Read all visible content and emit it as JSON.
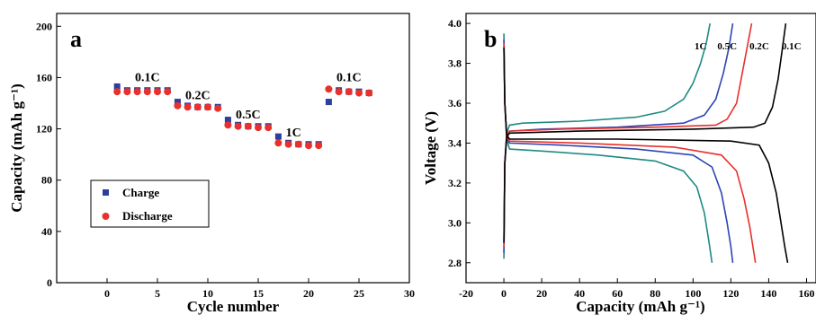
{
  "chart_data": [
    {
      "type": "scatter",
      "panel_label": "a",
      "xlabel": "Cycle number",
      "ylabel": "Capacity (mAh g⁻¹)",
      "xlim": [
        -5,
        30
      ],
      "ylim": [
        0,
        210
      ],
      "xticks": [
        0,
        5,
        10,
        15,
        20,
        25,
        30
      ],
      "yticks": [
        0,
        40,
        80,
        120,
        160,
        200
      ],
      "legend_position": "lower-left",
      "series": [
        {
          "name": "Charge",
          "color": "#2b3f9e",
          "marker": "square",
          "x": [
            1,
            2,
            3,
            4,
            5,
            6,
            7,
            8,
            9,
            10,
            11,
            12,
            13,
            14,
            15,
            16,
            17,
            18,
            19,
            20,
            21,
            22,
            23,
            24,
            25,
            26
          ],
          "y": [
            153,
            150,
            150,
            150,
            150,
            150,
            141,
            138,
            137,
            137,
            137,
            127,
            123,
            122,
            122,
            122,
            114,
            109,
            108,
            108,
            108,
            141,
            150,
            149,
            149,
            148
          ]
        },
        {
          "name": "Discharge",
          "color": "#e8302c",
          "marker": "circle",
          "x": [
            1,
            2,
            3,
            4,
            5,
            6,
            7,
            8,
            9,
            10,
            11,
            12,
            13,
            14,
            15,
            16,
            17,
            18,
            19,
            20,
            21,
            22,
            23,
            24,
            25,
            26
          ],
          "y": [
            149,
            149,
            149,
            149,
            149,
            149,
            138,
            137,
            137,
            137,
            136,
            123,
            122,
            122,
            121,
            121,
            109,
            108,
            108,
            107,
            107,
            151,
            149,
            149,
            148,
            148
          ]
        }
      ],
      "annotations": [
        {
          "text": "0.1C",
          "x": 4,
          "y": 157
        },
        {
          "text": "0.2C",
          "x": 9,
          "y": 143
        },
        {
          "text": "0.5C",
          "x": 14,
          "y": 128
        },
        {
          "text": "1C",
          "x": 18.5,
          "y": 114
        },
        {
          "text": "0.1C",
          "x": 24,
          "y": 157
        }
      ]
    },
    {
      "type": "line",
      "panel_label": "b",
      "xlabel": "Capacity (mAh g⁻¹)",
      "ylabel": "Voltage (V)",
      "xlim": [
        -20,
        165
      ],
      "ylim": [
        2.7,
        4.05
      ],
      "xticks": [
        -20,
        0,
        20,
        40,
        60,
        80,
        100,
        120,
        140,
        160
      ],
      "yticks": [
        2.8,
        3.0,
        3.2,
        3.4,
        3.6,
        3.8,
        4.0
      ],
      "legend_position": "none",
      "series": [
        {
          "name": "1C",
          "color": "#1f8a84",
          "charge": [
            [
              0,
              2.82
            ],
            [
              0.5,
              3.3
            ],
            [
              1.5,
              3.45
            ],
            [
              3,
              3.49
            ],
            [
              10,
              3.5
            ],
            [
              40,
              3.51
            ],
            [
              70,
              3.53
            ],
            [
              85,
              3.56
            ],
            [
              95,
              3.62
            ],
            [
              100,
              3.7
            ],
            [
              104,
              3.8
            ],
            [
              107,
              3.9
            ],
            [
              109,
              4.0
            ]
          ],
          "discharge": [
            [
              0,
              3.95
            ],
            [
              0.5,
              3.6
            ],
            [
              1.5,
              3.42
            ],
            [
              3,
              3.37
            ],
            [
              20,
              3.36
            ],
            [
              50,
              3.34
            ],
            [
              80,
              3.31
            ],
            [
              95,
              3.26
            ],
            [
              102,
              3.18
            ],
            [
              106,
              3.05
            ],
            [
              108.5,
              2.9
            ],
            [
              110,
              2.8
            ]
          ]
        },
        {
          "name": "0.5C",
          "color": "#2d44b5",
          "charge": [
            [
              0,
              2.85
            ],
            [
              0.5,
              3.3
            ],
            [
              1.5,
              3.44
            ],
            [
              3,
              3.46
            ],
            [
              20,
              3.47
            ],
            [
              60,
              3.48
            ],
            [
              95,
              3.5
            ],
            [
              106,
              3.54
            ],
            [
              112,
              3.62
            ],
            [
              116,
              3.75
            ],
            [
              119,
              3.88
            ],
            [
              121,
              4.0
            ]
          ],
          "discharge": [
            [
              0,
              3.92
            ],
            [
              0.5,
              3.6
            ],
            [
              1.5,
              3.43
            ],
            [
              3,
              3.4
            ],
            [
              30,
              3.39
            ],
            [
              70,
              3.37
            ],
            [
              100,
              3.34
            ],
            [
              110,
              3.28
            ],
            [
              115,
              3.15
            ],
            [
              118,
              3.0
            ],
            [
              120,
              2.88
            ],
            [
              121,
              2.8
            ]
          ]
        },
        {
          "name": "0.2C",
          "color": "#e8302c",
          "charge": [
            [
              0,
              2.88
            ],
            [
              0.5,
              3.3
            ],
            [
              1.5,
              3.44
            ],
            [
              3,
              3.46
            ],
            [
              30,
              3.47
            ],
            [
              80,
              3.48
            ],
            [
              112,
              3.49
            ],
            [
              118,
              3.52
            ],
            [
              123,
              3.6
            ],
            [
              126,
              3.75
            ],
            [
              129,
              3.9
            ],
            [
              131,
              4.0
            ]
          ],
          "discharge": [
            [
              0,
              3.9
            ],
            [
              0.5,
              3.6
            ],
            [
              1.5,
              3.43
            ],
            [
              3,
              3.41
            ],
            [
              40,
              3.4
            ],
            [
              90,
              3.38
            ],
            [
              115,
              3.34
            ],
            [
              123,
              3.26
            ],
            [
              127,
              3.12
            ],
            [
              130,
              2.98
            ],
            [
              132,
              2.86
            ],
            [
              133,
              2.8
            ]
          ]
        },
        {
          "name": "0.1C",
          "color": "#000000",
          "charge": [
            [
              0,
              2.9
            ],
            [
              0.5,
              3.3
            ],
            [
              1.5,
              3.43
            ],
            [
              3,
              3.45
            ],
            [
              40,
              3.46
            ],
            [
              100,
              3.47
            ],
            [
              132,
              3.48
            ],
            [
              138,
              3.5
            ],
            [
              142,
              3.58
            ],
            [
              145,
              3.72
            ],
            [
              147,
              3.86
            ],
            [
              149,
              4.0
            ]
          ],
          "discharge": [
            [
              0,
              3.88
            ],
            [
              0.5,
              3.6
            ],
            [
              1.5,
              3.44
            ],
            [
              3,
              3.42
            ],
            [
              60,
              3.42
            ],
            [
              120,
              3.41
            ],
            [
              135,
              3.39
            ],
            [
              140,
              3.3
            ],
            [
              144,
              3.15
            ],
            [
              146.5,
              3.0
            ],
            [
              148.5,
              2.88
            ],
            [
              150,
              2.8
            ]
          ]
        }
      ],
      "annotations": [
        {
          "text": "1C",
          "x": 104,
          "y": 3.87
        },
        {
          "text": "0.5C",
          "x": 118,
          "y": 3.87
        },
        {
          "text": "0.2C",
          "x": 135,
          "y": 3.87
        },
        {
          "text": "0.1C",
          "x": 152,
          "y": 3.87
        }
      ]
    }
  ]
}
